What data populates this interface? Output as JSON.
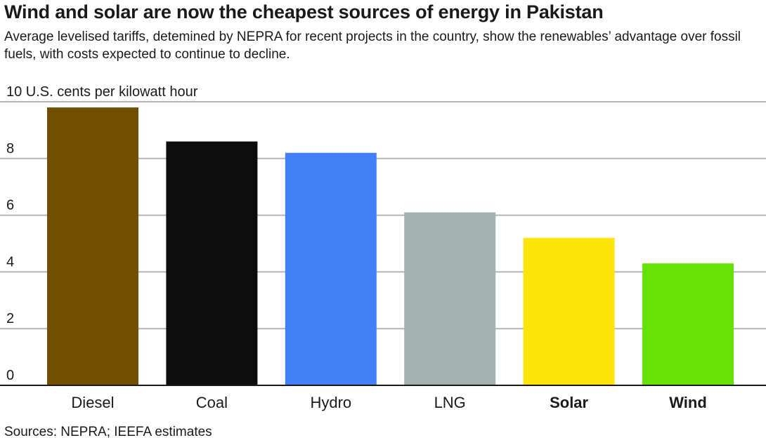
{
  "header": {
    "title": "Wind and solar are now the cheapest sources of energy in Pakistan",
    "subtitle": "Average levelised tariffs, detemined by NEPRA for recent projects in the country, show the renewables’ advantage over fossil fuels, with costs expected to continue to decline."
  },
  "footer": {
    "source": "Sources: NEPRA; IEEFA estimates"
  },
  "chart_data": {
    "type": "bar",
    "title": "Wind and solar are now the cheapest sources of energy in Pakistan",
    "ylabel": "U.S. cents per kilowatt hour",
    "xlabel": "",
    "ylim": [
      0,
      10
    ],
    "yticks": [
      0,
      2,
      4,
      6,
      8,
      10
    ],
    "ytick_labels": [
      "0",
      "2",
      "4",
      "6",
      "8",
      "10 U.S. cents per kilowatt hour"
    ],
    "grid": true,
    "legend": "none",
    "categories": [
      "Diesel",
      "Coal",
      "Hydro",
      "LNG",
      "Solar",
      "Wind"
    ],
    "values": [
      9.8,
      8.6,
      8.2,
      6.1,
      5.2,
      4.3
    ],
    "colors": [
      "#705000",
      "#0d0d0d",
      "#4280f8",
      "#a3b1b0",
      "#fde50c",
      "#65e106"
    ],
    "bold_categories": [
      "Solar",
      "Wind"
    ],
    "gridline_color": "#b4b4b4"
  }
}
